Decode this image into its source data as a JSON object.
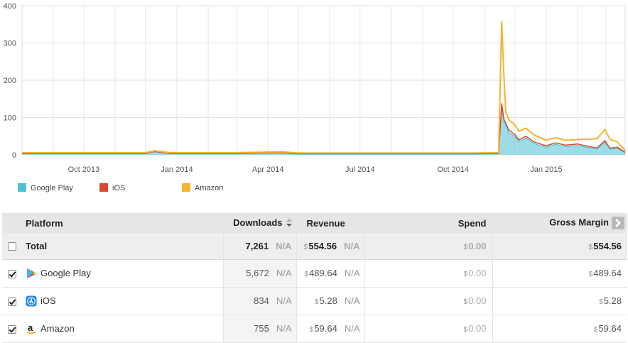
{
  "chart_data": {
    "type": "area",
    "y_ticks": [
      "0",
      "100",
      "200",
      "300",
      "400"
    ],
    "ylim": [
      0,
      400
    ],
    "x_ticks": [
      "Oct 2013",
      "Jan 2014",
      "Apr 2014",
      "Jul 2014",
      "Oct 2014",
      "Jan 2015"
    ],
    "x_start": "2013-08-01",
    "x_end": "2015-03-20",
    "legend_position": "bottom-left",
    "grid": true,
    "series": [
      {
        "name": "Google Play",
        "color": "#4fc1d3",
        "x": [
          "2013-08-01",
          "2013-10-01",
          "2013-12-01",
          "2013-12-10",
          "2013-12-25",
          "2014-01-01",
          "2014-03-01",
          "2014-04-15",
          "2014-05-01",
          "2014-07-01",
          "2014-09-01",
          "2014-10-20",
          "2014-11-15",
          "2014-11-18",
          "2014-11-20",
          "2014-11-25",
          "2014-12-01",
          "2014-12-05",
          "2014-12-12",
          "2014-12-20",
          "2015-01-01",
          "2015-01-10",
          "2015-01-20",
          "2015-02-01",
          "2015-02-10",
          "2015-02-20",
          "2015-02-28",
          "2015-03-05",
          "2015-03-12",
          "2015-03-20"
        ],
        "y": [
          3,
          3,
          3,
          8,
          3,
          3,
          3,
          5,
          2,
          2,
          2,
          2,
          3,
          130,
          90,
          60,
          50,
          35,
          45,
          30,
          20,
          28,
          22,
          25,
          20,
          15,
          35,
          15,
          18,
          5
        ]
      },
      {
        "name": "iOS",
        "color": "#d84a2e",
        "x": [
          "2013-08-01",
          "2014-11-15",
          "2014-11-18",
          "2014-12-01",
          "2015-01-01",
          "2015-02-01",
          "2015-03-20"
        ],
        "y": [
          1,
          1,
          8,
          5,
          4,
          4,
          2
        ]
      },
      {
        "name": "Amazon",
        "color": "#f6b42d",
        "x": [
          "2013-08-01",
          "2014-11-15",
          "2014-11-18",
          "2014-11-22",
          "2014-12-01",
          "2015-01-01",
          "2015-02-01",
          "2015-02-28",
          "2015-03-20"
        ],
        "y": [
          2,
          2,
          220,
          30,
          25,
          15,
          12,
          30,
          5
        ]
      }
    ]
  },
  "table": {
    "headers": {
      "platform": "Platform",
      "downloads": "Downloads",
      "revenue": "Revenue",
      "spend": "Spend",
      "gross_margin": "Gross Margin"
    },
    "total": {
      "label": "Total",
      "downloads": "7,261",
      "downloads_change": "N/A",
      "revenue": "554.56",
      "revenue_change": "N/A",
      "spend": "0.00",
      "gross_margin": "554.56"
    },
    "rows": [
      {
        "platform": "Google Play",
        "icon": "google-play-icon",
        "checked": true,
        "downloads": "5,672",
        "downloads_change": "N/A",
        "revenue": "489.64",
        "revenue_change": "N/A",
        "spend": "0.00",
        "gross_margin": "489.64"
      },
      {
        "platform": "iOS",
        "icon": "app-store-icon",
        "checked": true,
        "downloads": "834",
        "downloads_change": "N/A",
        "revenue": "5.28",
        "revenue_change": "N/A",
        "spend": "0.00",
        "gross_margin": "5.28"
      },
      {
        "platform": "Amazon",
        "icon": "amazon-icon",
        "checked": true,
        "downloads": "755",
        "downloads_change": "N/A",
        "revenue": "59.64",
        "revenue_change": "N/A",
        "spend": "0.00",
        "gross_margin": "59.64"
      }
    ],
    "currency_symbol": "$"
  }
}
